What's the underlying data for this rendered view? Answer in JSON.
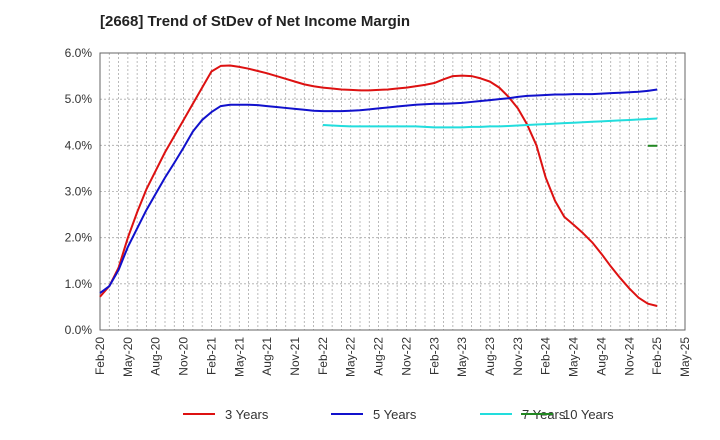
{
  "title": "[2668]  Trend of StDev of Net Income Margin",
  "chart_data": {
    "type": "line",
    "title": "[2668]  Trend of StDev of Net Income Margin",
    "xlabel": "",
    "ylabel": "",
    "ylim": [
      0,
      6
    ],
    "y_ticks": [
      "0.0%",
      "1.0%",
      "2.0%",
      "3.0%",
      "4.0%",
      "5.0%",
      "6.0%"
    ],
    "x_ticks": [
      "Feb-20",
      "May-20",
      "Aug-20",
      "Nov-20",
      "Feb-21",
      "May-21",
      "Aug-21",
      "Nov-21",
      "Feb-22",
      "May-22",
      "Aug-22",
      "Nov-22",
      "Feb-23",
      "May-23",
      "Aug-23",
      "Nov-23",
      "Feb-24",
      "May-24",
      "Aug-24",
      "Nov-24",
      "Feb-25",
      "May-25"
    ],
    "x_range": [
      "2020-02",
      "2025-05"
    ],
    "grid": true,
    "legend_position": "bottom",
    "series": [
      {
        "name": "3 Years",
        "color": "#dd1111",
        "points": [
          [
            "2020-02",
            0.72
          ],
          [
            "2020-03",
            0.95
          ],
          [
            "2020-04",
            1.35
          ],
          [
            "2020-05",
            2.0
          ],
          [
            "2020-06",
            2.55
          ],
          [
            "2020-07",
            3.05
          ],
          [
            "2020-08",
            3.45
          ],
          [
            "2020-09",
            3.85
          ],
          [
            "2020-10",
            4.2
          ],
          [
            "2020-11",
            4.55
          ],
          [
            "2020-12",
            4.9
          ],
          [
            "2021-01",
            5.25
          ],
          [
            "2021-02",
            5.6
          ],
          [
            "2021-03",
            5.72
          ],
          [
            "2021-04",
            5.73
          ],
          [
            "2021-05",
            5.7
          ],
          [
            "2021-06",
            5.66
          ],
          [
            "2021-07",
            5.61
          ],
          [
            "2021-08",
            5.56
          ],
          [
            "2021-09",
            5.5
          ],
          [
            "2021-10",
            5.44
          ],
          [
            "2021-11",
            5.38
          ],
          [
            "2021-12",
            5.32
          ],
          [
            "2022-01",
            5.28
          ],
          [
            "2022-02",
            5.25
          ],
          [
            "2022-03",
            5.23
          ],
          [
            "2022-04",
            5.21
          ],
          [
            "2022-05",
            5.2
          ],
          [
            "2022-06",
            5.19
          ],
          [
            "2022-07",
            5.19
          ],
          [
            "2022-08",
            5.2
          ],
          [
            "2022-09",
            5.21
          ],
          [
            "2022-10",
            5.23
          ],
          [
            "2022-11",
            5.25
          ],
          [
            "2022-12",
            5.28
          ],
          [
            "2023-01",
            5.31
          ],
          [
            "2023-02",
            5.35
          ],
          [
            "2023-03",
            5.43
          ],
          [
            "2023-04",
            5.5
          ],
          [
            "2023-05",
            5.51
          ],
          [
            "2023-06",
            5.5
          ],
          [
            "2023-07",
            5.45
          ],
          [
            "2023-08",
            5.38
          ],
          [
            "2023-09",
            5.25
          ],
          [
            "2023-10",
            5.05
          ],
          [
            "2023-11",
            4.8
          ],
          [
            "2023-12",
            4.45
          ],
          [
            "2024-01",
            4.0
          ],
          [
            "2024-02",
            3.3
          ],
          [
            "2024-03",
            2.8
          ],
          [
            "2024-04",
            2.45
          ],
          [
            "2024-05",
            2.28
          ],
          [
            "2024-06",
            2.1
          ],
          [
            "2024-07",
            1.9
          ],
          [
            "2024-08",
            1.65
          ],
          [
            "2024-09",
            1.38
          ],
          [
            "2024-10",
            1.13
          ],
          [
            "2024-11",
            0.9
          ],
          [
            "2024-12",
            0.7
          ],
          [
            "2025-01",
            0.57
          ],
          [
            "2025-02",
            0.52
          ]
        ]
      },
      {
        "name": "5 Years",
        "color": "#1111cc",
        "points": [
          [
            "2020-02",
            0.8
          ],
          [
            "2020-03",
            0.95
          ],
          [
            "2020-04",
            1.3
          ],
          [
            "2020-05",
            1.8
          ],
          [
            "2020-06",
            2.2
          ],
          [
            "2020-07",
            2.6
          ],
          [
            "2020-08",
            2.95
          ],
          [
            "2020-09",
            3.3
          ],
          [
            "2020-10",
            3.62
          ],
          [
            "2020-11",
            3.95
          ],
          [
            "2020-12",
            4.3
          ],
          [
            "2021-01",
            4.55
          ],
          [
            "2021-02",
            4.72
          ],
          [
            "2021-03",
            4.85
          ],
          [
            "2021-04",
            4.88
          ],
          [
            "2021-05",
            4.88
          ],
          [
            "2021-06",
            4.88
          ],
          [
            "2021-07",
            4.87
          ],
          [
            "2021-08",
            4.85
          ],
          [
            "2021-09",
            4.83
          ],
          [
            "2021-10",
            4.81
          ],
          [
            "2021-11",
            4.79
          ],
          [
            "2021-12",
            4.77
          ],
          [
            "2022-01",
            4.75
          ],
          [
            "2022-02",
            4.74
          ],
          [
            "2022-03",
            4.74
          ],
          [
            "2022-04",
            4.74
          ],
          [
            "2022-05",
            4.75
          ],
          [
            "2022-06",
            4.76
          ],
          [
            "2022-07",
            4.78
          ],
          [
            "2022-08",
            4.8
          ],
          [
            "2022-09",
            4.82
          ],
          [
            "2022-10",
            4.84
          ],
          [
            "2022-11",
            4.86
          ],
          [
            "2022-12",
            4.88
          ],
          [
            "2023-01",
            4.89
          ],
          [
            "2023-02",
            4.9
          ],
          [
            "2023-03",
            4.9
          ],
          [
            "2023-04",
            4.91
          ],
          [
            "2023-05",
            4.92
          ],
          [
            "2023-06",
            4.94
          ],
          [
            "2023-07",
            4.96
          ],
          [
            "2023-08",
            4.98
          ],
          [
            "2023-09",
            5.0
          ],
          [
            "2023-10",
            5.02
          ],
          [
            "2023-11",
            5.05
          ],
          [
            "2023-12",
            5.07
          ],
          [
            "2024-01",
            5.08
          ],
          [
            "2024-02",
            5.09
          ],
          [
            "2024-03",
            5.1
          ],
          [
            "2024-04",
            5.1
          ],
          [
            "2024-05",
            5.11
          ],
          [
            "2024-06",
            5.11
          ],
          [
            "2024-07",
            5.11
          ],
          [
            "2024-08",
            5.12
          ],
          [
            "2024-09",
            5.13
          ],
          [
            "2024-10",
            5.14
          ],
          [
            "2024-11",
            5.15
          ],
          [
            "2024-12",
            5.16
          ],
          [
            "2025-01",
            5.18
          ],
          [
            "2025-02",
            5.21
          ]
        ]
      },
      {
        "name": "7 Years",
        "color": "#22dddd",
        "points": [
          [
            "2022-02",
            4.44
          ],
          [
            "2022-03",
            4.43
          ],
          [
            "2022-04",
            4.42
          ],
          [
            "2022-05",
            4.41
          ],
          [
            "2022-06",
            4.41
          ],
          [
            "2022-07",
            4.41
          ],
          [
            "2022-08",
            4.41
          ],
          [
            "2022-09",
            4.41
          ],
          [
            "2022-10",
            4.41
          ],
          [
            "2022-11",
            4.41
          ],
          [
            "2022-12",
            4.41
          ],
          [
            "2023-01",
            4.4
          ],
          [
            "2023-02",
            4.39
          ],
          [
            "2023-03",
            4.39
          ],
          [
            "2023-04",
            4.39
          ],
          [
            "2023-05",
            4.39
          ],
          [
            "2023-06",
            4.4
          ],
          [
            "2023-07",
            4.4
          ],
          [
            "2023-08",
            4.41
          ],
          [
            "2023-09",
            4.41
          ],
          [
            "2023-10",
            4.42
          ],
          [
            "2023-11",
            4.43
          ],
          [
            "2023-12",
            4.44
          ],
          [
            "2024-01",
            4.45
          ],
          [
            "2024-02",
            4.46
          ],
          [
            "2024-03",
            4.47
          ],
          [
            "2024-04",
            4.48
          ],
          [
            "2024-05",
            4.49
          ],
          [
            "2024-06",
            4.5
          ],
          [
            "2024-07",
            4.51
          ],
          [
            "2024-08",
            4.52
          ],
          [
            "2024-09",
            4.53
          ],
          [
            "2024-10",
            4.54
          ],
          [
            "2024-11",
            4.55
          ],
          [
            "2024-12",
            4.56
          ],
          [
            "2025-01",
            4.57
          ],
          [
            "2025-02",
            4.58
          ]
        ]
      },
      {
        "name": "10 Years",
        "color": "#228822",
        "points": [
          [
            "2025-01",
            3.99
          ],
          [
            "2025-02",
            3.99
          ]
        ]
      }
    ]
  }
}
